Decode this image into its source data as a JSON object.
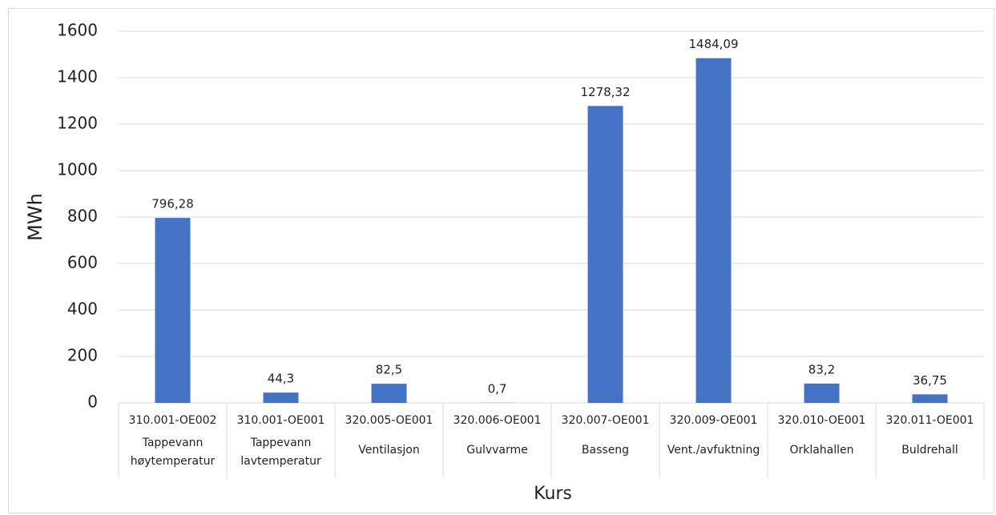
{
  "chart_data": {
    "type": "bar",
    "categories": [
      [
        "310.001-OE002",
        "Tappevann høytemperatur"
      ],
      [
        "310.001-OE001",
        "Tappevann lavtemperatur"
      ],
      [
        "320.005-OE001",
        "Ventilasjon"
      ],
      [
        "320.006-OE001",
        "Gulvvarme"
      ],
      [
        "320.007-OE001",
        "Basseng"
      ],
      [
        "320.009-OE001",
        "Vent./avfuktning"
      ],
      [
        "320.010-OE001",
        "Orklahallen"
      ],
      [
        "320.011-OE001",
        "Buldrehall"
      ]
    ],
    "values": [
      796.28,
      44.3,
      82.5,
      0.7,
      1278.32,
      1484.09,
      83.2,
      36.75
    ],
    "value_labels": [
      "796,28",
      "44,3",
      "82,5",
      "0,7",
      "1278,32",
      "1484,09",
      "83,2",
      "36,75"
    ],
    "color": "#4472c4",
    "ylim": [
      0,
      1600
    ],
    "yticks": [
      0,
      200,
      400,
      600,
      800,
      1000,
      1200,
      1400,
      1600
    ],
    "grid": true,
    "y_label": "MWh",
    "x_label": "Kurs"
  }
}
